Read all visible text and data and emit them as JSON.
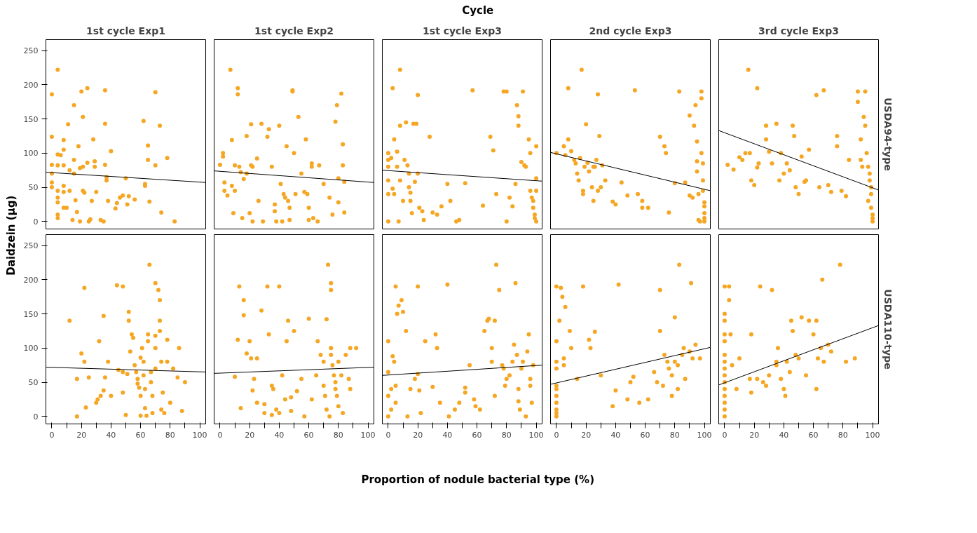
{
  "chart_data": [
    {
      "type": "scatter",
      "title": "1st cycle Exp1",
      "ylabel": "Daidzein (µg)",
      "annotations": [
        "Cycle"
      ],
      "xlim": [
        -4,
        104
      ],
      "ylim": [
        -11,
        266
      ],
      "yticks": [
        0,
        50,
        100,
        150,
        200,
        250
      ],
      "tick_labels": "y",
      "grid": false,
      "series": [
        {
          "color": "#f5a623",
          "marker": "circle",
          "x": [
            0,
            0,
            0,
            0,
            0,
            0,
            4,
            4,
            4,
            4,
            4,
            4,
            4,
            4,
            6,
            8,
            8,
            8,
            8,
            8,
            8,
            10,
            11,
            12,
            12,
            14,
            15,
            15,
            15,
            16,
            17,
            18,
            19,
            19,
            20,
            21,
            21,
            21,
            22,
            24,
            24,
            25,
            26,
            27,
            28,
            29,
            29,
            30,
            33,
            35,
            36,
            36,
            36,
            37,
            37,
            38,
            40,
            43,
            44,
            46,
            48,
            50,
            51,
            52,
            56,
            62,
            63,
            63,
            65,
            65,
            66,
            70,
            70,
            73,
            74,
            78,
            83
          ],
          "values": [
            186,
            124,
            83,
            70,
            57,
            50,
            222,
            98,
            82,
            45,
            35,
            28,
            10,
            5,
            97,
            119,
            105,
            82,
            52,
            43,
            20,
            20,
            142,
            75,
            45,
            2,
            170,
            90,
            70,
            31,
            14,
            110,
            78,
            0,
            190,
            153,
            80,
            45,
            42,
            195,
            86,
            0,
            3,
            30,
            120,
            88,
            80,
            43,
            2,
            0,
            192,
            143,
            83,
            65,
            60,
            30,
            103,
            19,
            27,
            35,
            38,
            63,
            25,
            37,
            32,
            147,
            55,
            52,
            111,
            90,
            29,
            189,
            82,
            140,
            13,
            93,
            0
          ]
        },
        {
          "type": "line",
          "color": "#000000",
          "x": [
            -4,
            104
          ],
          "values": [
            72,
            57
          ]
        }
      ]
    },
    {
      "type": "scatter",
      "title": "1st cycle Exp2",
      "xlim": [
        -4,
        104
      ],
      "ylim": [
        -11,
        266
      ],
      "tick_labels": false,
      "grid": false,
      "series": [
        {
          "color": "#f5a623",
          "marker": "circle",
          "x": [
            0,
            2,
            2,
            3,
            3,
            5,
            7,
            8,
            8,
            9,
            10,
            10,
            12,
            12,
            13,
            14,
            15,
            16,
            18,
            18,
            20,
            21,
            21,
            22,
            22,
            25,
            26,
            28,
            29,
            32,
            33,
            35,
            37,
            37,
            38,
            40,
            41,
            42,
            43,
            44,
            45,
            46,
            47,
            47,
            49,
            49,
            50,
            51,
            53,
            55,
            57,
            58,
            59,
            60,
            60,
            62,
            62,
            63,
            66,
            67,
            70,
            74,
            76,
            78,
            79,
            80,
            80,
            82,
            83,
            83,
            84,
            84
          ],
          "values": [
            83,
            100,
            95,
            57,
            45,
            38,
            222,
            119,
            52,
            12,
            45,
            82,
            195,
            186,
            80,
            72,
            5,
            62,
            70,
            125,
            12,
            82,
            142,
            80,
            0,
            92,
            30,
            143,
            0,
            124,
            135,
            80,
            25,
            15,
            0,
            140,
            55,
            0,
            40,
            35,
            110,
            30,
            20,
            2,
            192,
            190,
            100,
            40,
            153,
            70,
            43,
            120,
            40,
            20,
            2,
            85,
            80,
            5,
            0,
            82,
            55,
            35,
            10,
            146,
            170,
            63,
            28,
            187,
            113,
            82,
            58,
            13
          ]
        },
        {
          "type": "line",
          "color": "#000000",
          "x": [
            -4,
            104
          ],
          "values": [
            74,
            57
          ]
        }
      ]
    },
    {
      "type": "scatter",
      "title": "1st cycle Exp3",
      "xlim": [
        -4,
        104
      ],
      "ylim": [
        -11,
        266
      ],
      "tick_labels": false,
      "grid": false,
      "series": [
        {
          "color": "#f5a623",
          "marker": "circle",
          "x": [
            0,
            0,
            0,
            0,
            0,
            0,
            2,
            3,
            3,
            4,
            4,
            6,
            6,
            7,
            8,
            8,
            8,
            10,
            11,
            12,
            13,
            14,
            14,
            15,
            15,
            16,
            17,
            18,
            19,
            20,
            20,
            21,
            23,
            24,
            28,
            30,
            33,
            36,
            40,
            42,
            46,
            48,
            52,
            57,
            64,
            69,
            71,
            73,
            78,
            80,
            80,
            82,
            84,
            86,
            87,
            88,
            88,
            90,
            91,
            92,
            93,
            95,
            96,
            96,
            97,
            98,
            98,
            99,
            99,
            100,
            100,
            100,
            100
          ],
          "values": [
            100,
            90,
            80,
            60,
            40,
            0,
            93,
            195,
            48,
            120,
            40,
            102,
            80,
            0,
            222,
            140,
            60,
            30,
            90,
            145,
            82,
            70,
            50,
            42,
            30,
            12,
            143,
            58,
            143,
            185,
            70,
            20,
            15,
            2,
            124,
            13,
            10,
            22,
            55,
            30,
            0,
            2,
            56,
            192,
            23,
            124,
            104,
            40,
            190,
            190,
            0,
            35,
            22,
            55,
            170,
            154,
            140,
            87,
            190,
            82,
            80,
            120,
            100,
            45,
            35,
            30,
            20,
            10,
            5,
            110,
            63,
            45,
            0
          ]
        },
        {
          "type": "line",
          "color": "#000000",
          "x": [
            -4,
            104
          ],
          "values": [
            75,
            59
          ]
        }
      ]
    },
    {
      "type": "scatter",
      "title": "2nd cycle Exp3",
      "xlim": [
        -4,
        104
      ],
      "ylim": [
        -11,
        266
      ],
      "tick_labels": false,
      "grid": false,
      "series": [
        {
          "color": "#f5a623",
          "marker": "circle",
          "x": [
            0,
            5,
            6,
            8,
            8,
            10,
            12,
            13,
            14,
            15,
            16,
            17,
            18,
            18,
            19,
            20,
            21,
            22,
            24,
            25,
            25,
            26,
            27,
            28,
            28,
            29,
            30,
            31,
            33,
            38,
            40,
            44,
            48,
            53,
            55,
            58,
            58,
            62,
            70,
            73,
            74,
            76,
            80,
            83,
            87,
            90,
            90,
            92,
            93,
            94,
            95,
            95,
            95,
            96,
            96,
            97,
            98,
            98,
            98,
            99,
            99,
            99,
            100,
            100,
            100,
            100,
            100
          ],
          "values": [
            100,
            110,
            97,
            195,
            120,
            103,
            90,
            85,
            70,
            60,
            93,
            222,
            45,
            40,
            80,
            142,
            86,
            73,
            50,
            80,
            30,
            80,
            90,
            45,
            186,
            125,
            50,
            82,
            60,
            29,
            25,
            57,
            38,
            192,
            40,
            30,
            20,
            20,
            124,
            110,
            100,
            13,
            56,
            190,
            57,
            38,
            155,
            35,
            140,
            170,
            88,
            73,
            117,
            40,
            2,
            0,
            190,
            180,
            100,
            85,
            60,
            45,
            28,
            22,
            12,
            5,
            0
          ]
        },
        {
          "type": "line",
          "color": "#000000",
          "x": [
            -4,
            104
          ],
          "values": [
            101,
            45
          ]
        }
      ]
    },
    {
      "type": "scatter",
      "title": "3rd cycle Exp3",
      "y2label": "USDA94-type",
      "xlim": [
        -4,
        104
      ],
      "ylim": [
        -11,
        266
      ],
      "tick_labels": false,
      "grid": false,
      "series": [
        {
          "color": "#f5a623",
          "marker": "circle",
          "x": [
            2,
            6,
            10,
            12,
            14,
            16,
            17,
            18,
            20,
            22,
            22,
            23,
            28,
            28,
            30,
            32,
            35,
            37,
            38,
            40,
            42,
            44,
            46,
            47,
            48,
            50,
            52,
            54,
            55,
            57,
            62,
            64,
            67,
            70,
            72,
            76,
            76,
            79,
            82,
            84,
            90,
            90,
            92,
            92,
            93,
            94,
            95,
            95,
            96,
            97,
            97,
            98,
            98,
            99,
            99,
            99,
            100,
            100,
            100
          ],
          "values": [
            83,
            76,
            94,
            90,
            100,
            222,
            100,
            60,
            53,
            195,
            79,
            85,
            120,
            140,
            102,
            85,
            143,
            60,
            100,
            70,
            85,
            75,
            140,
            125,
            50,
            40,
            95,
            58,
            60,
            105,
            185,
            50,
            192,
            53,
            43,
            125,
            110,
            45,
            37,
            90,
            190,
            175,
            120,
            90,
            80,
            153,
            190,
            140,
            100,
            30,
            80,
            70,
            60,
            50,
            40,
            20,
            10,
            5,
            0
          ]
        },
        {
          "type": "line",
          "color": "#000000",
          "x": [
            -4,
            104
          ],
          "values": [
            133,
            46
          ]
        }
      ]
    },
    {
      "type": "scatter",
      "xlim": [
        -4,
        104
      ],
      "ylim": [
        -11,
        266
      ],
      "xticks": [
        0,
        {
          "value": 10,
          "label": null
        },
        20,
        {
          "value": 30,
          "label": null
        },
        40,
        {
          "value": 50,
          "label": null
        },
        60,
        {
          "value": 70,
          "label": null
        },
        80,
        {
          "value": 90,
          "label": null
        },
        100
      ],
      "yticks": [
        0,
        50,
        100,
        150,
        200,
        250
      ],
      "grid": false,
      "series": [
        {
          "color": "#f5a623",
          "marker": "circle",
          "x": [
            12,
            17,
            17,
            20,
            22,
            22,
            23,
            25,
            30,
            31,
            32,
            33,
            35,
            35,
            36,
            38,
            40,
            44,
            45,
            48,
            48,
            48,
            50,
            51,
            52,
            52,
            53,
            54,
            55,
            56,
            57,
            58,
            58,
            59,
            60,
            60,
            60,
            61,
            62,
            62,
            63,
            63,
            64,
            65,
            65,
            66,
            67,
            67,
            68,
            68,
            70,
            70,
            70,
            70,
            72,
            73,
            73,
            73,
            74,
            74,
            75,
            76,
            78,
            78,
            80,
            82,
            85,
            86,
            88,
            90
          ],
          "values": [
            140,
            55,
            0,
            92,
            188,
            80,
            13,
            57,
            20,
            25,
            110,
            30,
            147,
            38,
            57,
            80,
            30,
            192,
            68,
            190,
            65,
            35,
            2,
            62,
            153,
            140,
            95,
            120,
            115,
            75,
            65,
            55,
            48,
            42,
            86,
            30,
            1,
            100,
            80,
            60,
            40,
            12,
            1,
            110,
            120,
            222,
            65,
            50,
            5,
            30,
            195,
            118,
            100,
            70,
            185,
            170,
            140,
            125,
            80,
            10,
            35,
            5,
            112,
            80,
            20,
            70,
            57,
            100,
            8,
            50
          ]
        },
        {
          "type": "line",
          "color": "#000000",
          "x": [
            -4,
            104
          ],
          "values": [
            72,
            65
          ]
        }
      ]
    },
    {
      "type": "scatter",
      "xlim": [
        -4,
        104
      ],
      "ylim": [
        -11,
        266
      ],
      "xticks": [
        0,
        {
          "value": 10,
          "label": null
        },
        20,
        {
          "value": 30,
          "label": null
        },
        40,
        {
          "value": 50,
          "label": null
        },
        60,
        {
          "value": 70,
          "label": null
        },
        80,
        {
          "value": 90,
          "label": null
        },
        100
      ],
      "tick_labels": "x",
      "grid": false,
      "series": [
        {
          "color": "#f5a623",
          "marker": "circle",
          "x": [
            10,
            12,
            13,
            14,
            16,
            16,
            18,
            20,
            21,
            22,
            23,
            25,
            25,
            28,
            30,
            30,
            32,
            33,
            35,
            35,
            36,
            38,
            40,
            40,
            42,
            44,
            45,
            46,
            48,
            48,
            50,
            52,
            55,
            57,
            60,
            62,
            65,
            66,
            68,
            70,
            70,
            71,
            72,
            72,
            73,
            74,
            75,
            75,
            75,
            75,
            76,
            77,
            78,
            78,
            79,
            80,
            80,
            82,
            83,
            85,
            87,
            88,
            88,
            92
          ],
          "values": [
            58,
            112,
            190,
            12,
            170,
            148,
            92,
            110,
            85,
            38,
            55,
            85,
            20,
            155,
            18,
            5,
            190,
            120,
            45,
            2,
            40,
            10,
            190,
            5,
            60,
            25,
            110,
            140,
            28,
            8,
            125,
            37,
            55,
            0,
            143,
            25,
            60,
            110,
            90,
            80,
            45,
            30,
            142,
            10,
            222,
            0,
            195,
            185,
            100,
            90,
            75,
            60,
            50,
            40,
            30,
            15,
            80,
            60,
            5,
            90,
            55,
            40,
            100,
            100
          ]
        },
        {
          "type": "line",
          "color": "#000000",
          "x": [
            -4,
            104
          ],
          "values": [
            63,
            72
          ]
        }
      ]
    },
    {
      "type": "scatter",
      "xlabel": "Proportion of nodule bacterial type (%)",
      "xlim": [
        -4,
        104
      ],
      "ylim": [
        -11,
        266
      ],
      "xticks": [
        0,
        {
          "value": 10,
          "label": null
        },
        20,
        {
          "value": 30,
          "label": null
        },
        40,
        {
          "value": 50,
          "label": null
        },
        60,
        {
          "value": 70,
          "label": null
        },
        80,
        {
          "value": 90,
          "label": null
        },
        100
      ],
      "tick_labels": "x",
      "grid": false,
      "series": [
        {
          "color": "#f5a623",
          "marker": "circle",
          "x": [
            0,
            0,
            0,
            0,
            2,
            2,
            3,
            4,
            5,
            5,
            5,
            6,
            7,
            9,
            10,
            12,
            13,
            15,
            18,
            20,
            20,
            21,
            22,
            25,
            30,
            32,
            33,
            35,
            40,
            41,
            45,
            48,
            52,
            52,
            55,
            58,
            59,
            62,
            65,
            67,
            68,
            70,
            70,
            72,
            72,
            73,
            75,
            77,
            78,
            79,
            80,
            82,
            84,
            85,
            86,
            87,
            88,
            88,
            89,
            90,
            91,
            93,
            94,
            95,
            96,
            96,
            97,
            98
          ],
          "values": [
            65,
            110,
            30,
            0,
            40,
            10,
            88,
            80,
            45,
            190,
            20,
            150,
            162,
            170,
            153,
            125,
            0,
            40,
            55,
            190,
            62,
            38,
            5,
            110,
            43,
            120,
            100,
            20,
            193,
            0,
            10,
            20,
            35,
            42,
            75,
            25,
            15,
            10,
            125,
            140,
            143,
            80,
            100,
            140,
            30,
            222,
            185,
            75,
            70,
            45,
            55,
            60,
            80,
            105,
            195,
            90,
            40,
            22,
            10,
            70,
            80,
            0,
            95,
            120,
            55,
            45,
            20,
            75
          ]
        },
        {
          "type": "line",
          "color": "#000000",
          "x": [
            -4,
            104
          ],
          "values": [
            60,
            75
          ]
        }
      ]
    },
    {
      "type": "scatter",
      "xlim": [
        -4,
        104
      ],
      "ylim": [
        -11,
        266
      ],
      "xticks": [
        0,
        {
          "value": 10,
          "label": null
        },
        20,
        {
          "value": 30,
          "label": null
        },
        40,
        {
          "value": 50,
          "label": null
        },
        60,
        {
          "value": 70,
          "label": null
        },
        80,
        {
          "value": 90,
          "label": null
        },
        100
      ],
      "tick_labels": "x",
      "grid": false,
      "series": [
        {
          "color": "#f5a623",
          "marker": "circle",
          "x": [
            0,
            0,
            0,
            0,
            0,
            0,
            0,
            0,
            0,
            0,
            0,
            2,
            3,
            4,
            5,
            5,
            6,
            9,
            10,
            14,
            18,
            22,
            23,
            26,
            30,
            38,
            40,
            42,
            48,
            50,
            52,
            56,
            62,
            66,
            68,
            70,
            70,
            72,
            73,
            75,
            76,
            78,
            78,
            80,
            80,
            82,
            82,
            83,
            85,
            86,
            87,
            90,
            91,
            92,
            94,
            97
          ],
          "values": [
            190,
            110,
            80,
            70,
            45,
            40,
            30,
            20,
            10,
            5,
            0,
            140,
            188,
            175,
            85,
            75,
            160,
            125,
            100,
            55,
            190,
            112,
            100,
            124,
            60,
            15,
            38,
            193,
            25,
            50,
            58,
            20,
            25,
            65,
            50,
            125,
            185,
            45,
            90,
            80,
            70,
            60,
            30,
            80,
            145,
            75,
            40,
            222,
            90,
            100,
            55,
            95,
            195,
            85,
            105,
            85
          ]
        },
        {
          "type": "line",
          "color": "#000000",
          "x": [
            -4,
            104
          ],
          "values": [
            47,
            101
          ]
        }
      ]
    },
    {
      "type": "scatter",
      "y2label": "USDA110-type",
      "xlim": [
        -4,
        104
      ],
      "ylim": [
        -11,
        266
      ],
      "xticks": [
        0,
        {
          "value": 10,
          "label": null
        },
        20,
        {
          "value": 30,
          "label": null
        },
        40,
        {
          "value": 50,
          "label": null
        },
        60,
        {
          "value": 70,
          "label": null
        },
        80,
        {
          "value": 90,
          "label": null
        },
        100
      ],
      "tick_labels": "x",
      "grid": false,
      "series": [
        {
          "color": "#f5a623",
          "marker": "circle",
          "x": [
            0,
            0,
            0,
            0,
            0,
            0,
            0,
            0,
            0,
            0,
            0,
            0,
            0,
            0,
            0,
            3,
            3,
            4,
            5,
            8,
            10,
            17,
            18,
            18,
            22,
            24,
            26,
            28,
            30,
            32,
            35,
            35,
            36,
            38,
            40,
            41,
            42,
            44,
            45,
            46,
            48,
            50,
            52,
            55,
            57,
            60,
            62,
            62,
            63,
            65,
            66,
            67,
            70,
            72,
            78,
            82,
            88
          ],
          "values": [
            190,
            150,
            140,
            120,
            110,
            90,
            80,
            70,
            60,
            50,
            40,
            30,
            20,
            10,
            0,
            190,
            170,
            120,
            75,
            40,
            85,
            55,
            120,
            35,
            55,
            190,
            50,
            45,
            60,
            185,
            80,
            75,
            100,
            55,
            40,
            30,
            80,
            65,
            140,
            125,
            90,
            85,
            145,
            60,
            140,
            120,
            40,
            140,
            85,
            100,
            200,
            80,
            105,
            95,
            222,
            80,
            85
          ]
        },
        {
          "type": "line",
          "color": "#000000",
          "x": [
            -4,
            104
          ],
          "values": [
            46,
            133
          ]
        }
      ]
    }
  ]
}
